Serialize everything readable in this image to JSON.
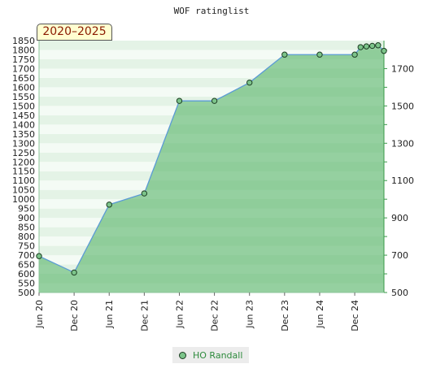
{
  "chart_data": {
    "type": "area",
    "title": "WOF ratinglist",
    "range_label": "2020–2025",
    "series": [
      {
        "name": "HO Randall",
        "color": "#7cc48a",
        "line_color": "#5b9bd5",
        "points": [
          {
            "x": "2020-06",
            "y": 695
          },
          {
            "x": "2020-12",
            "y": 607
          },
          {
            "x": "2021-06",
            "y": 971
          },
          {
            "x": "2021-12",
            "y": 1031
          },
          {
            "x": "2022-06",
            "y": 1527
          },
          {
            "x": "2022-12",
            "y": 1527
          },
          {
            "x": "2023-06",
            "y": 1625
          },
          {
            "x": "2023-12",
            "y": 1775
          },
          {
            "x": "2024-06",
            "y": 1775
          },
          {
            "x": "2024-12",
            "y": 1775
          },
          {
            "x": "2025-01",
            "y": 1815
          },
          {
            "x": "2025-02",
            "y": 1819
          },
          {
            "x": "2025-03",
            "y": 1822
          },
          {
            "x": "2025-04",
            "y": 1825
          },
          {
            "x": "2025-05",
            "y": 1795
          }
        ]
      }
    ],
    "x_ticks": [
      {
        "x": "2020-06",
        "label": "Jun 20"
      },
      {
        "x": "2020-12",
        "label": "Dec 20"
      },
      {
        "x": "2021-06",
        "label": "Jun 21"
      },
      {
        "x": "2021-12",
        "label": "Dec 21"
      },
      {
        "x": "2022-06",
        "label": "Jun 22"
      },
      {
        "x": "2022-12",
        "label": "Dec 22"
      },
      {
        "x": "2023-06",
        "label": "Jun 23"
      },
      {
        "x": "2023-12",
        "label": "Dec 23"
      },
      {
        "x": "2024-06",
        "label": "Jun 24"
      },
      {
        "x": "2024-12",
        "label": "Dec 24"
      }
    ],
    "x_range": [
      "2020-06",
      "2025-05"
    ],
    "ylim": [
      500,
      1850
    ],
    "y_left_ticks": [
      500,
      550,
      600,
      650,
      700,
      750,
      800,
      850,
      900,
      950,
      1000,
      1050,
      1100,
      1150,
      1200,
      1250,
      1300,
      1350,
      1400,
      1450,
      1500,
      1550,
      1600,
      1650,
      1700,
      1750,
      1800,
      1850
    ],
    "y_right_ticks": [
      500,
      700,
      900,
      1100,
      1300,
      1500,
      1700
    ],
    "legend": "bottom-center",
    "grid": true
  }
}
